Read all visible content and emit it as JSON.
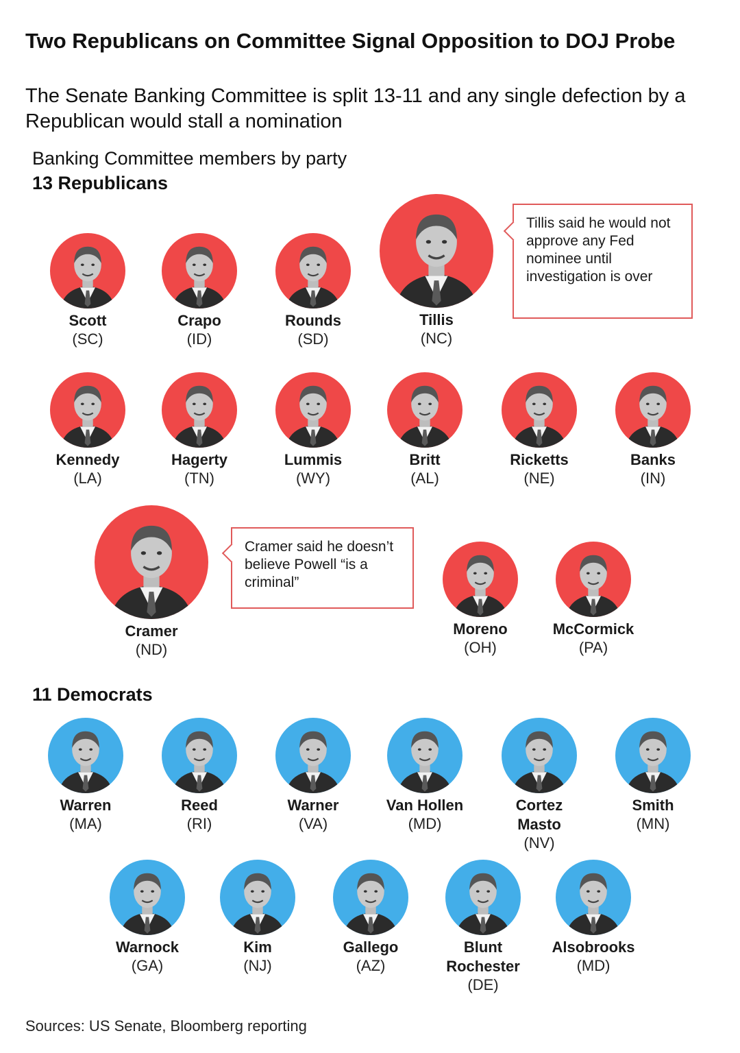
{
  "headline": "Two Republicans on Committee Signal Opposition to DOJ Probe",
  "subhead": "The Senate Banking Committee is split 13-11 and any single defection by a Republican would stall a nomination",
  "chart_label": "Banking Committee members by party",
  "republicans": {
    "title": "13 Republicans",
    "color": "#ef4848",
    "members": [
      {
        "name": "Scott",
        "state": "(SC)"
      },
      {
        "name": "Crapo",
        "state": "(ID)"
      },
      {
        "name": "Rounds",
        "state": "(SD)"
      },
      {
        "name": "Tillis",
        "state": "(NC)"
      },
      {
        "name": "Kennedy",
        "state": "(LA)"
      },
      {
        "name": "Hagerty",
        "state": "(TN)"
      },
      {
        "name": "Lummis",
        "state": "(WY)"
      },
      {
        "name": "Britt",
        "state": "(AL)"
      },
      {
        "name": "Ricketts",
        "state": "(NE)"
      },
      {
        "name": "Banks",
        "state": "(IN)"
      },
      {
        "name": "Cramer",
        "state": "(ND)"
      },
      {
        "name": "Moreno",
        "state": "(OH)"
      },
      {
        "name": "McCormick",
        "state": "(PA)"
      }
    ]
  },
  "democrats": {
    "title": "11 Democrats",
    "color": "#43aee9",
    "members": [
      {
        "name": "Warren",
        "state": "(MA)"
      },
      {
        "name": "Reed",
        "state": "(RI)"
      },
      {
        "name": "Warner",
        "state": "(VA)"
      },
      {
        "name": "Van Hollen",
        "state": "(MD)"
      },
      {
        "name": "Cortez Masto",
        "state": "(NV)"
      },
      {
        "name": "Smith",
        "state": "(MN)"
      },
      {
        "name": "Warnock",
        "state": "(GA)"
      },
      {
        "name": "Kim",
        "state": "(NJ)"
      },
      {
        "name": "Gallego",
        "state": "(AZ)"
      },
      {
        "name": "Blunt Rochester",
        "state": "(DE)"
      },
      {
        "name": "Alsobrooks",
        "state": "(MD)"
      }
    ]
  },
  "callouts": {
    "tillis": "Tillis said he would not approve any Fed nominee until investigation is over",
    "cramer": "Cramer said he doesn’t believe Powell “is a criminal”"
  },
  "source": "Sources: US Senate, Bloomberg reporting"
}
